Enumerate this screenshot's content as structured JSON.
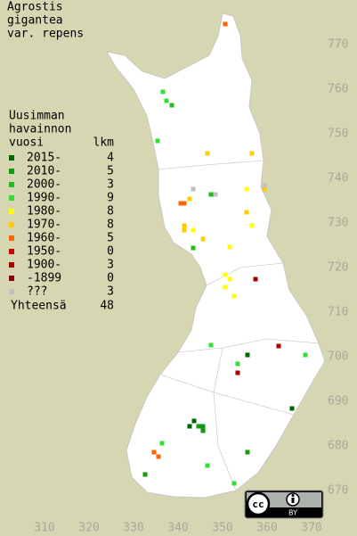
{
  "title": [
    "Agrostis",
    "gigantea",
    "var. repens"
  ],
  "legend": {
    "heading": [
      "Uusimman",
      "havainnon",
      "vuosi"
    ],
    "count_heading": "lkm",
    "rows": [
      {
        "label": "2015-",
        "count": 4,
        "color": "#006600",
        "points": [
          [
            343.6,
            685.6
          ],
          [
            355.6,
            700.4
          ],
          [
            365.6,
            688.4
          ],
          [
            342.6,
            684.4
          ]
        ]
      },
      {
        "label": "2010-",
        "count": 5,
        "color": "#119911",
        "points": [
          [
            344.6,
            684.4
          ],
          [
            345.6,
            684.4
          ],
          [
            332.6,
            673.6
          ],
          [
            355.6,
            678.6
          ],
          [
            345.6,
            683.4
          ]
        ]
      },
      {
        "label": "2000-",
        "count": 3,
        "color": "#22bb22",
        "points": [
          [
            338.6,
            756.4
          ],
          [
            343.4,
            724.4
          ],
          [
            347.4,
            736.4
          ]
        ]
      },
      {
        "label": "1990-",
        "count": 9,
        "color": "#33dd33",
        "points": [
          [
            336.6,
            759.4
          ],
          [
            337.4,
            757.4
          ],
          [
            335.4,
            748.4
          ],
          [
            347.4,
            702.6
          ],
          [
            353.4,
            698.4
          ],
          [
            368.6,
            700.4
          ],
          [
            336.4,
            680.6
          ],
          [
            346.6,
            675.6
          ],
          [
            352.6,
            671.6
          ]
        ]
      },
      {
        "label": "1980-",
        "count": 8,
        "color": "#ffff00",
        "points": [
          [
            355.4,
            737.6
          ],
          [
            343.4,
            728.4
          ],
          [
            351.6,
            724.6
          ],
          [
            350.6,
            718.4
          ],
          [
            351.6,
            717.4
          ],
          [
            352.6,
            713.6
          ],
          [
            350.6,
            715.6
          ],
          [
            356.6,
            729.4
          ]
        ]
      },
      {
        "label": "1970-",
        "count": 8,
        "color": "#ffcc00",
        "points": [
          [
            346.6,
            745.6
          ],
          [
            356.6,
            745.6
          ],
          [
            342.6,
            735.4
          ],
          [
            341.4,
            729.4
          ],
          [
            341.4,
            728.4
          ],
          [
            355.4,
            732.4
          ],
          [
            345.6,
            726.4
          ],
          [
            359.4,
            737.6
          ]
        ]
      },
      {
        "label": "1960-",
        "count": 5,
        "color": "#ff6600",
        "points": [
          [
            350.6,
            774.6
          ],
          [
            340.6,
            734.4
          ],
          [
            341.4,
            734.4
          ],
          [
            334.6,
            678.6
          ],
          [
            335.6,
            677.6
          ]
        ]
      },
      {
        "label": "1950-",
        "count": 0,
        "color": "#cc0000",
        "points": []
      },
      {
        "label": "1900-",
        "count": 3,
        "color": "#aa0000",
        "points": [
          [
            357.4,
            717.4
          ],
          [
            362.6,
            702.4
          ],
          [
            353.4,
            696.4
          ]
        ]
      },
      {
        "label": "-1899",
        "count": 0,
        "color": "#880000",
        "points": []
      },
      {
        "label": "???",
        "count": 3,
        "color": "#c0c0c0",
        "points": [
          [
            343.4,
            737.6
          ],
          [
            348.4,
            736.4
          ],
          [
            359.4,
            738.4
          ]
        ]
      }
    ],
    "total_label": "Yhteensä",
    "total": 48
  },
  "map": {
    "xlim": [
      300,
      380
    ],
    "ylim": [
      660,
      780
    ],
    "xticks": [
      310,
      320,
      330,
      340,
      350,
      360,
      370
    ],
    "yticks": [
      670,
      680,
      690,
      700,
      710,
      720,
      730,
      740,
      750,
      760,
      770
    ]
  },
  "badge": {
    "logo": "cc",
    "by": "BY"
  }
}
